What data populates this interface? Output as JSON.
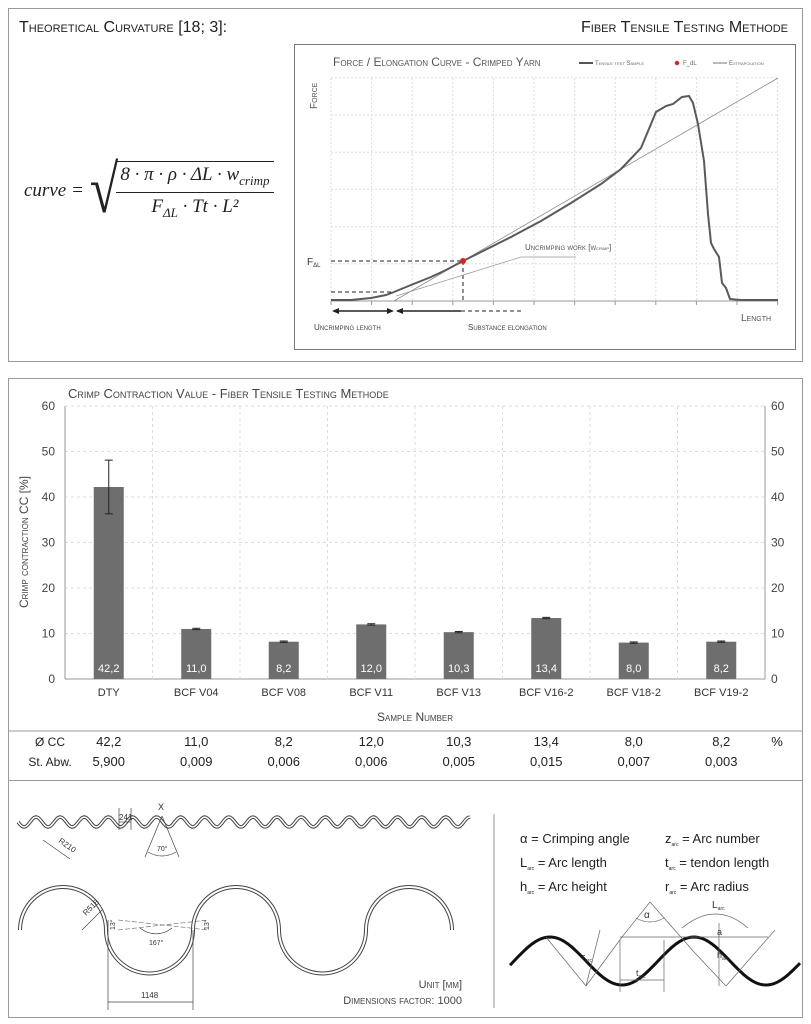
{
  "top": {
    "title": "Theoretical Curvature",
    "title_ref": "[18; 3]:",
    "method": "Fiber Tensile Testing Methode",
    "formula_lhs": "curve =",
    "formula_num": "8 · π · ρ · ΔL · w",
    "formula_num_sub": "crimp",
    "formula_den": "F",
    "formula_den_sub": "ΔL",
    "formula_den_rest": " · Tt · L²",
    "force_chart": {
      "title": "Force / Elongation Curve - Crimped Yarn",
      "legend": [
        "Tensile test Sample",
        "F_dL",
        "Extrapolation"
      ],
      "ylabel": "Force",
      "xlabel": "Length",
      "f_label": "F",
      "f_sub": "ΔL",
      "annot_work": "Uncrimping work [w",
      "annot_work_sub": "crimp",
      "annot_work_end": "]",
      "annot_uncrimp": "Uncrimping length",
      "annot_substance": "Substance elongation",
      "colors": {
        "curve": "#555555",
        "point": "#e02020",
        "line": "#777777"
      }
    }
  },
  "chart_data": {
    "type": "bar",
    "title": "Crimp Contraction Value - Fiber Tensile Testing Methode",
    "xlabel": "Sample Number",
    "ylabel": "Crimp contraction CC [%]",
    "ylim": [
      0,
      60
    ],
    "yticks": [
      "0",
      "10",
      "20",
      "30",
      "40",
      "50",
      "60"
    ],
    "grid": true,
    "categories": [
      "DTY",
      "BCF V04",
      "BCF V08",
      "BCF V11",
      "BCF V13",
      "BCF V16-2",
      "BCF V18-2",
      "BCF V19-2"
    ],
    "values": [
      42.2,
      11.0,
      8.2,
      12.0,
      10.3,
      13.4,
      8.0,
      8.2
    ],
    "value_labels": [
      "42,2",
      "11,0",
      "8,2",
      "12,0",
      "10,3",
      "13,4",
      "8,0",
      "8,2"
    ],
    "errors": [
      5.9,
      0.009,
      0.006,
      0.006,
      0.005,
      0.015,
      0.007,
      0.003
    ],
    "bar_color": "#6e6e6e"
  },
  "table": {
    "rows": [
      {
        "label": "Ø CC",
        "values": [
          "42,2",
          "11,0",
          "8,2",
          "12,0",
          "10,3",
          "13,4",
          "8,0",
          "8,2"
        ],
        "unit": "%"
      },
      {
        "label": "St. Abw.",
        "values": [
          "5,900",
          "0,009",
          "0,006",
          "0,006",
          "0,005",
          "0,015",
          "0,007",
          "0,003"
        ],
        "unit": ""
      }
    ]
  },
  "bottom": {
    "dims": {
      "pitch_small": "241",
      "radius_small": "R210",
      "angle_small": "70°",
      "radius_big": "R518",
      "angle_big": "167°",
      "offset": "13°",
      "pitch_big": "1148",
      "x_mark": "X"
    },
    "unit": "Unit [mm]",
    "factor": "Dimensions factor: 1000",
    "legend": [
      {
        "sym": "α",
        "sub": "",
        "text": " = Crimping angle"
      },
      {
        "sym": "z",
        "sub": "arc",
        "text": " = Arc number"
      },
      {
        "sym": "L",
        "sub": "arc",
        "text": " = Arc length"
      },
      {
        "sym": "t",
        "sub": "arc",
        "text": " = tendon length"
      },
      {
        "sym": "h",
        "sub": "arc",
        "text": " = Arc height"
      },
      {
        "sym": "r",
        "sub": "arc",
        "text": " = Arc radius"
      }
    ],
    "sketch": {
      "alpha": "α",
      "L": "L",
      "a": "a",
      "h": "h",
      "r": "r",
      "t": "t",
      "sub": "arc"
    }
  }
}
